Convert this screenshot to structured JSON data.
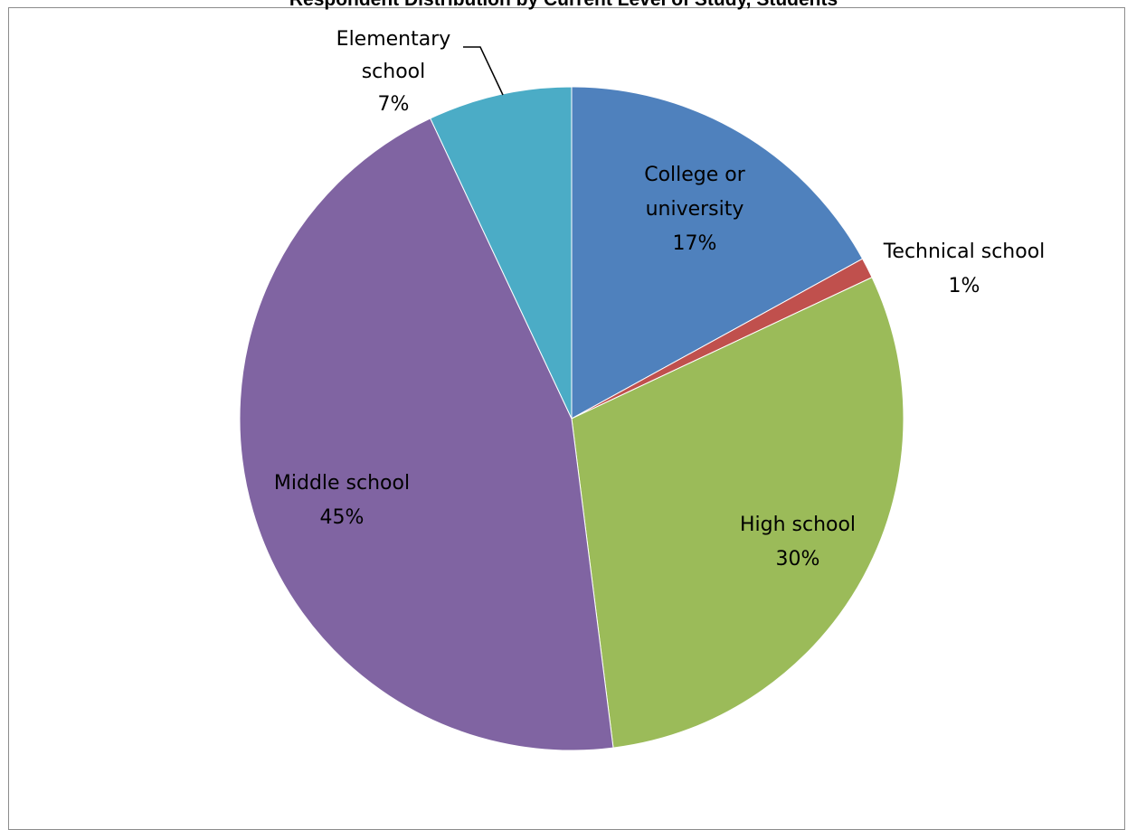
{
  "chart_data": {
    "type": "pie",
    "title": "Respondent Distribution by Current Level of Study, Students",
    "slices": [
      {
        "name": "College or university",
        "value": 17,
        "label_lines": [
          "College or",
          "university",
          "17%"
        ],
        "color": "#4f81bd"
      },
      {
        "name": "Technical school",
        "value": 1,
        "label_lines": [
          "Technical school",
          "1%"
        ],
        "color": "#c0504d"
      },
      {
        "name": "High school",
        "value": 30,
        "label_lines": [
          "High school",
          "30%"
        ],
        "color": "#9bbb59"
      },
      {
        "name": "Middle school",
        "value": 45,
        "label_lines": [
          "Middle school",
          "45%"
        ],
        "color": "#8064a2"
      },
      {
        "name": "Elementary school",
        "value": 7,
        "label_lines": [
          "Elementary",
          "school",
          "7%"
        ],
        "color": "#4bacc6"
      }
    ],
    "start_angle_deg": 0,
    "direction": "clockwise",
    "legend": "none",
    "data_labels": "category name and percentage"
  }
}
